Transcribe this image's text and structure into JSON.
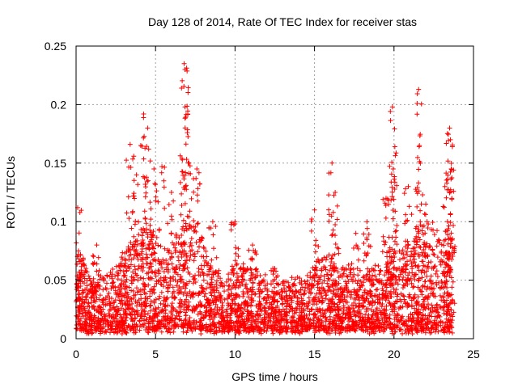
{
  "chart_data": {
    "type": "scatter",
    "title": "Day 128 of 2014, Rate Of TEC Index for receiver stas",
    "xlabel": "GPS time / hours",
    "ylabel": "ROTI / TECUs",
    "xlim": [
      0,
      25
    ],
    "ylim": [
      0,
      0.25
    ],
    "xticks": [
      0,
      5,
      10,
      15,
      20,
      25
    ],
    "yticks": [
      0,
      0.05,
      0.1,
      0.15,
      0.2,
      0.25
    ],
    "xtick_labels": [
      "0",
      "5",
      "10",
      "15",
      "20",
      "25"
    ],
    "ytick_labels": [
      "0",
      "0.05",
      "0.1",
      "0.15",
      "0.2",
      "0.25"
    ],
    "grid": true,
    "marker": "+",
    "color": "#ff0000",
    "series": [
      {
        "name": "ROTI",
        "x_range": [
          0,
          23.7
        ],
        "baseline_profile": [
          [
            0,
            0.018
          ],
          [
            0.3,
            0.035
          ],
          [
            1,
            0.022
          ],
          [
            2,
            0.025
          ],
          [
            3,
            0.035
          ],
          [
            4,
            0.045
          ],
          [
            4.5,
            0.05
          ],
          [
            5.5,
            0.035
          ],
          [
            6.5,
            0.045
          ],
          [
            7.5,
            0.05
          ],
          [
            8.5,
            0.03
          ],
          [
            9.5,
            0.025
          ],
          [
            10.5,
            0.03
          ],
          [
            11.5,
            0.025
          ],
          [
            13,
            0.022
          ],
          [
            14.5,
            0.025
          ],
          [
            15.5,
            0.035
          ],
          [
            16.5,
            0.03
          ],
          [
            18,
            0.028
          ],
          [
            19,
            0.03
          ],
          [
            20,
            0.035
          ],
          [
            21,
            0.04
          ],
          [
            22,
            0.05
          ],
          [
            23,
            0.045
          ],
          [
            23.7,
            0.04
          ]
        ],
        "peaks": [
          [
            0.1,
            0.112
          ],
          [
            0.15,
            0.075
          ],
          [
            1.3,
            0.08
          ],
          [
            3.4,
            0.166
          ],
          [
            3.8,
            0.14
          ],
          [
            4.25,
            0.192
          ],
          [
            4.5,
            0.18
          ],
          [
            4.9,
            0.145
          ],
          [
            5.4,
            0.147
          ],
          [
            6.0,
            0.125
          ],
          [
            6.8,
            0.235
          ],
          [
            6.85,
            0.23
          ],
          [
            6.85,
            0.198
          ],
          [
            7.1,
            0.15
          ],
          [
            7.6,
            0.145
          ],
          [
            8.6,
            0.1
          ],
          [
            10.0,
            0.1
          ],
          [
            11.1,
            0.08
          ],
          [
            12.5,
            0.06
          ],
          [
            15.0,
            0.11
          ],
          [
            16.1,
            0.15
          ],
          [
            16.3,
            0.125
          ],
          [
            17.6,
            0.09
          ],
          [
            18.3,
            0.1
          ],
          [
            19.5,
            0.12
          ],
          [
            19.9,
            0.198
          ],
          [
            19.95,
            0.145
          ],
          [
            20.9,
            0.13
          ],
          [
            21.55,
            0.213
          ],
          [
            21.6,
            0.165
          ],
          [
            22.0,
            0.115
          ],
          [
            23.2,
            0.13
          ],
          [
            23.5,
            0.18
          ],
          [
            23.55,
            0.17
          ],
          [
            23.6,
            0.145
          ]
        ]
      }
    ]
  }
}
